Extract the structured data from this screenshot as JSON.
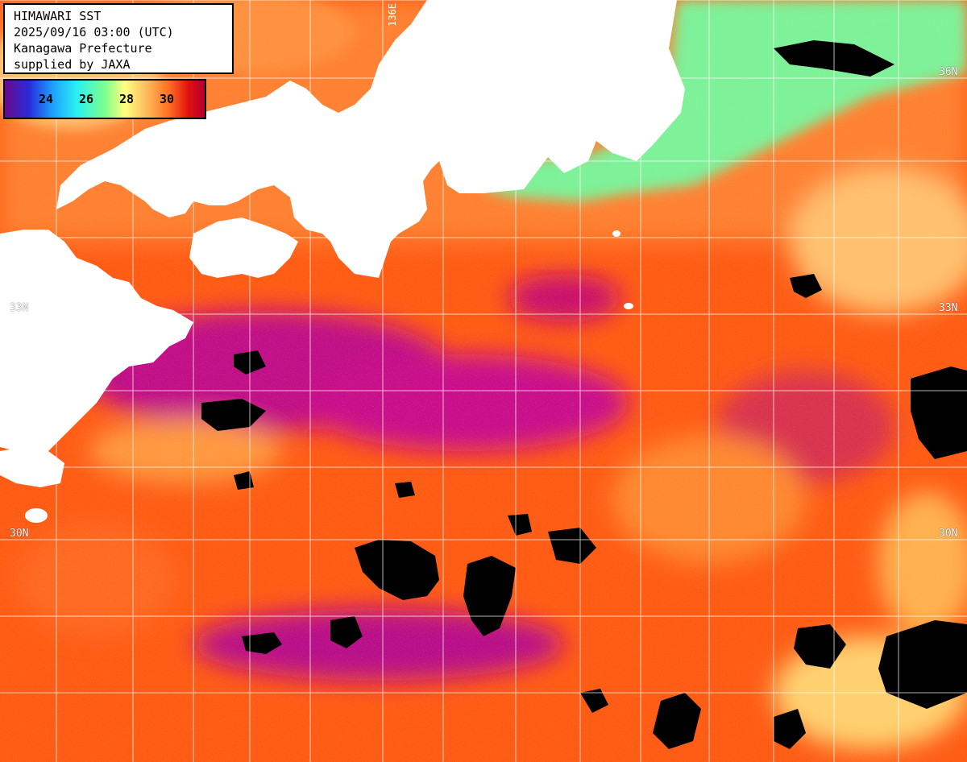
{
  "title": {
    "line1": "HIMAWARI SST",
    "line2": "2025/09/16 03:00 (UTC)",
    "line3": "Kanagawa Prefecture",
    "line4": "supplied by JAXA"
  },
  "legend": {
    "ticks": [
      "24",
      "26",
      "28",
      "30"
    ],
    "colors": [
      "#6a0a8c",
      "#2a2ad8",
      "#1ea0ff",
      "#2af0f0",
      "#7cff8c",
      "#ffff80",
      "#ffc060",
      "#ff7020",
      "#e01010",
      "#b00030"
    ]
  },
  "grid_labels": {
    "lon_136": "136E",
    "lat_36_right": "36N",
    "lat_33_right": "33N",
    "lat_33_left": "33N",
    "lat_30_left": "30N",
    "lat_30_right": "30N"
  },
  "colors": {
    "land": "#ffffff",
    "no_data": "#000000",
    "grid": "#ffffff",
    "warm_base": "#ff5a14",
    "hot": "#c0107a",
    "cool_coastal": "#7cf29a",
    "mild": "#ffb050"
  }
}
